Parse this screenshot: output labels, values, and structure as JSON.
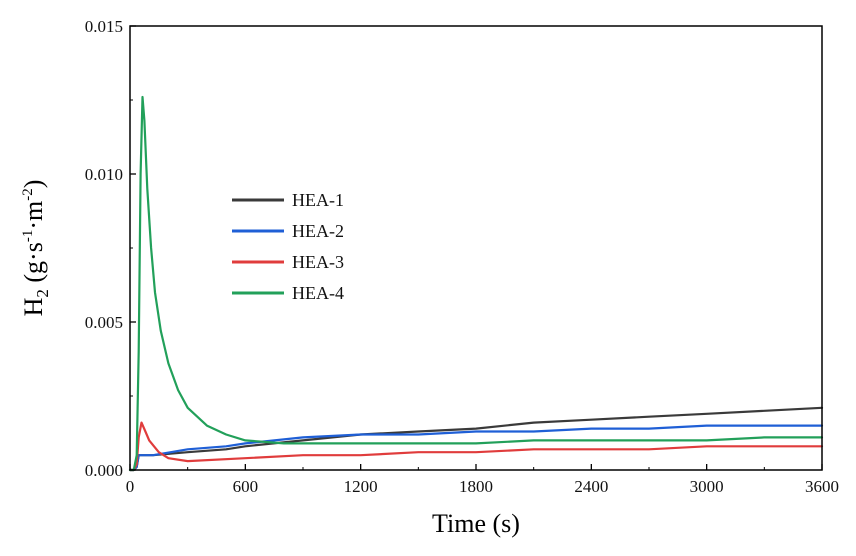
{
  "chart_data": {
    "type": "line",
    "title": "",
    "xlabel": "Time (s)",
    "ylabel_main": "H",
    "ylabel_sub": "2",
    "ylabel_units": {
      "open": " (g·s",
      "exp1": "-1",
      "mid": "·m",
      "exp2": "-2",
      "close": ")"
    },
    "xlim": [
      0,
      3600
    ],
    "ylim": [
      0,
      0.015
    ],
    "x_ticks": [
      "0",
      "600",
      "1200",
      "1800",
      "2400",
      "3000",
      "3600"
    ],
    "y_ticks": [
      "0.000",
      "0.005",
      "0.010",
      "0.015"
    ],
    "grid": false,
    "legend_position": "center-left",
    "series": [
      {
        "name": "HEA-1",
        "color": "#3a3a3a",
        "x": [
          0,
          20,
          35,
          45,
          60,
          120,
          300,
          500,
          600,
          900,
          1200,
          1500,
          1800,
          2100,
          2400,
          2700,
          3000,
          3300,
          3600
        ],
        "y": [
          0,
          0,
          0.0001,
          0.0005,
          0.0005,
          0.0005,
          0.0006,
          0.0007,
          0.0008,
          0.001,
          0.0012,
          0.0013,
          0.0014,
          0.0016,
          0.0017,
          0.0018,
          0.0019,
          0.002,
          0.0021
        ]
      },
      {
        "name": "HEA-2",
        "color": "#1f5fd6",
        "x": [
          0,
          20,
          35,
          45,
          60,
          120,
          300,
          500,
          600,
          900,
          1200,
          1500,
          1800,
          2100,
          2400,
          2700,
          3000,
          3300,
          3600
        ],
        "y": [
          0,
          0,
          0.0001,
          0.0005,
          0.0005,
          0.0005,
          0.0007,
          0.0008,
          0.0009,
          0.0011,
          0.0012,
          0.0012,
          0.0013,
          0.0013,
          0.0014,
          0.0014,
          0.0015,
          0.0015,
          0.0015
        ]
      },
      {
        "name": "HEA-3",
        "color": "#e03c3c",
        "x": [
          0,
          20,
          35,
          45,
          60,
          80,
          100,
          150,
          200,
          300,
          600,
          900,
          1200,
          1500,
          1800,
          2100,
          2400,
          2700,
          3000,
          3300,
          3600
        ],
        "y": [
          0,
          0,
          0.0002,
          0.0011,
          0.0016,
          0.0013,
          0.001,
          0.0006,
          0.0004,
          0.0003,
          0.0004,
          0.0005,
          0.0005,
          0.0006,
          0.0006,
          0.0007,
          0.0007,
          0.0007,
          0.0008,
          0.0008,
          0.0008
        ]
      },
      {
        "name": "HEA-4",
        "color": "#22a05a",
        "x": [
          0,
          20,
          35,
          45,
          55,
          65,
          75,
          90,
          110,
          130,
          160,
          200,
          250,
          300,
          400,
          500,
          600,
          800,
          1000,
          1200,
          1500,
          1800,
          2100,
          2400,
          2700,
          3000,
          3300,
          3600
        ],
        "y": [
          0,
          0,
          0.0005,
          0.004,
          0.01,
          0.0126,
          0.0118,
          0.0095,
          0.0075,
          0.006,
          0.0047,
          0.0036,
          0.0027,
          0.0021,
          0.0015,
          0.0012,
          0.001,
          0.0009,
          0.0009,
          0.0009,
          0.0009,
          0.0009,
          0.001,
          0.001,
          0.001,
          0.001,
          0.0011,
          0.0011
        ]
      }
    ]
  }
}
